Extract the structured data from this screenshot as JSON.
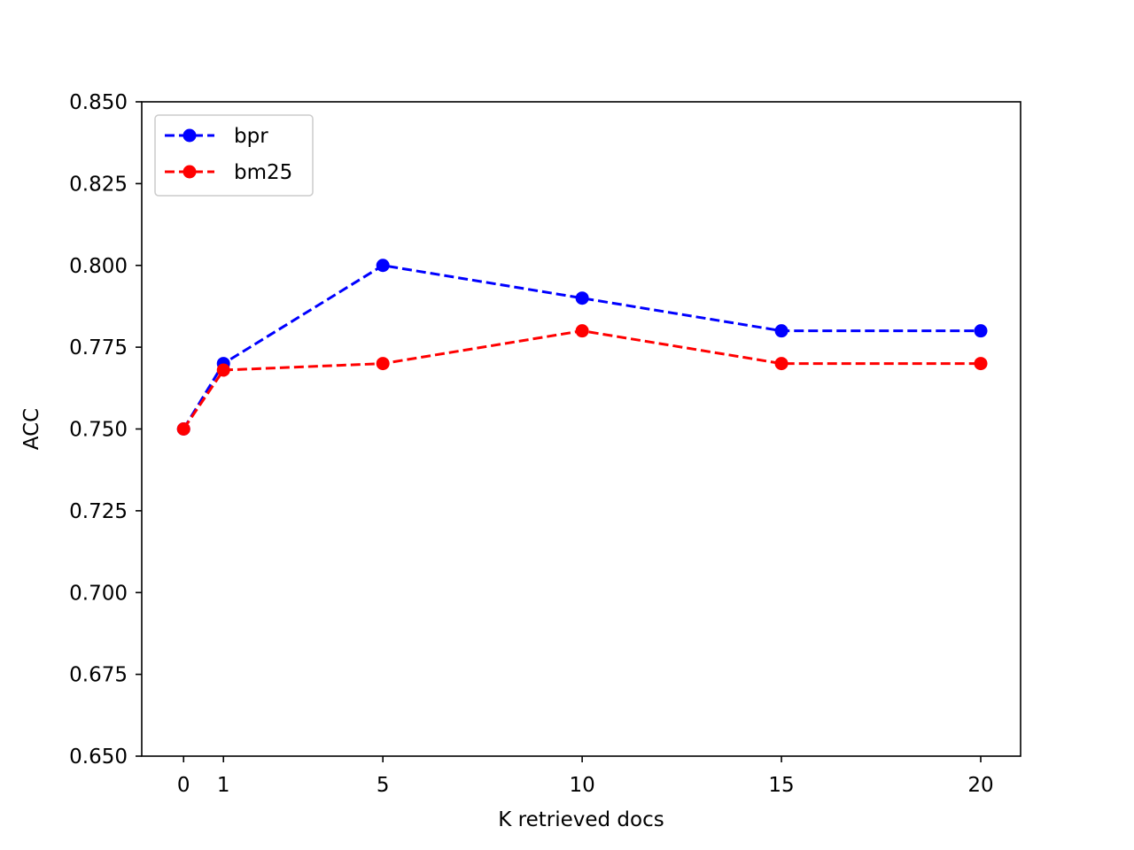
{
  "chart_data": {
    "type": "line",
    "title": "",
    "xlabel": "K retrieved docs",
    "ylabel": "ACC",
    "x": [
      0,
      1,
      5,
      10,
      15,
      20
    ],
    "xticks": [
      "0",
      "1",
      "5",
      "10",
      "15",
      "20"
    ],
    "xlim": [
      -1.05,
      21
    ],
    "ylim": [
      0.65,
      0.85
    ],
    "yticks": [
      "0.650",
      "0.675",
      "0.700",
      "0.725",
      "0.750",
      "0.775",
      "0.800",
      "0.825",
      "0.850"
    ],
    "grid": false,
    "legend_position": "top-left",
    "series": [
      {
        "name": "bpr",
        "color": "#0000ff",
        "line_style": "dashed",
        "marker": "circle",
        "values": [
          0.75,
          0.77,
          0.8,
          0.79,
          0.78,
          0.78
        ]
      },
      {
        "name": "bm25",
        "color": "#ff0000",
        "line_style": "dashed",
        "marker": "circle",
        "values": [
          0.75,
          0.768,
          0.77,
          0.78,
          0.77,
          0.77
        ]
      }
    ]
  }
}
